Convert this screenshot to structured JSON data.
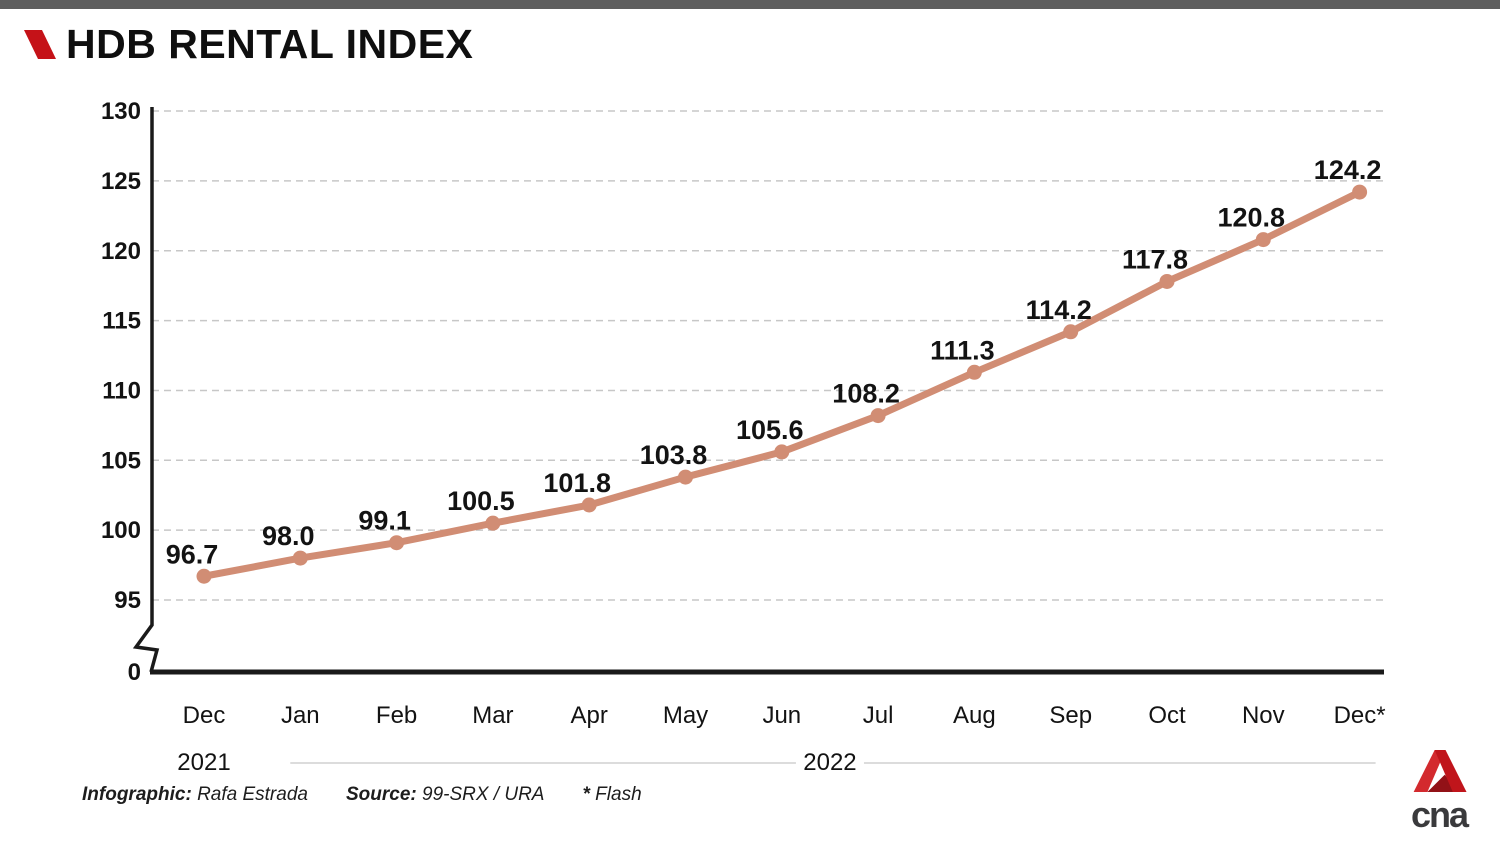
{
  "header": {
    "title": "HDB RENTAL INDEX"
  },
  "chart_data": {
    "type": "line",
    "title": "HDB RENTAL INDEX",
    "series_name": "HDB Rental Index",
    "x": [
      "Dec",
      "Jan",
      "Feb",
      "Mar",
      "Apr",
      "May",
      "Jun",
      "Jul",
      "Aug",
      "Sep",
      "Oct",
      "Nov",
      "Dec*"
    ],
    "values": [
      96.7,
      98.0,
      99.1,
      100.5,
      101.8,
      103.8,
      105.6,
      108.2,
      111.3,
      114.2,
      117.8,
      120.8,
      124.2
    ],
    "point_labels": [
      "96.7",
      "98.0",
      "99.1",
      "100.5",
      "101.8",
      "103.8",
      "105.6",
      "108.2",
      "111.3",
      "114.2",
      "117.8",
      "120.8",
      "124.2"
    ],
    "y_ticks": [
      0,
      95,
      100,
      105,
      110,
      115,
      120,
      125,
      130
    ],
    "y_display_range": [
      95,
      130
    ],
    "axis_break": true,
    "grid": "horizontal-dashed",
    "legend": "none",
    "year_groups": [
      {
        "label": "2021",
        "start": 0,
        "end": 0
      },
      {
        "label": "2022",
        "start": 1,
        "end": 12
      }
    ]
  },
  "footer": {
    "infographic_label": "Infographic:",
    "infographic_value": "Rafa Estrada",
    "source_label": "Source:",
    "source_value": "99-SRX / URA",
    "flash_note_symbol": "*",
    "flash_note_text": "Flash"
  },
  "logo": {
    "text": "cna"
  },
  "colors": {
    "line": "#D18D74",
    "brand_red": "#C51218",
    "top_bar": "#5E5E5E",
    "grid": "#C7C7C7",
    "axis": "#1A1A1A",
    "text": "#131313",
    "year_line": "#DCDCDC",
    "logo_left": "#D32A2E",
    "logo_right": "#C0151B",
    "logo_fold": "#921117",
    "logo_text": "#3A3A3C"
  }
}
